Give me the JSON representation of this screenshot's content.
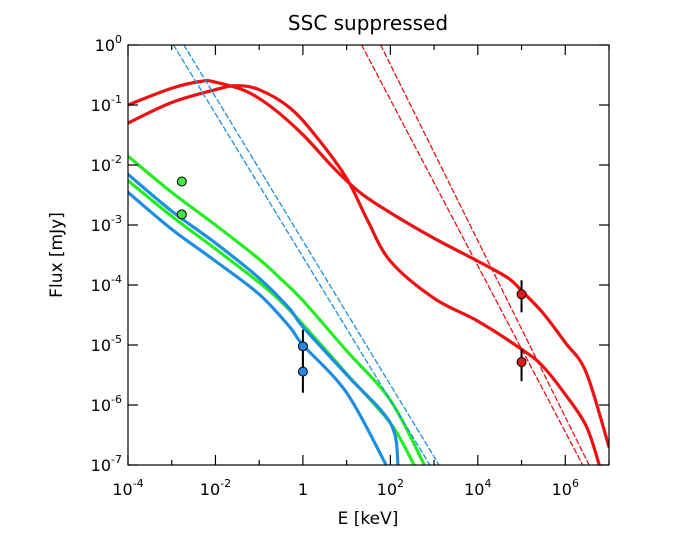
{
  "chart_data": {
    "type": "line",
    "title": "SSC suppressed",
    "xlabel": "E [keV]",
    "ylabel": "Flux [mJy]",
    "xscale": "log",
    "yscale": "log",
    "xlim": [
      0.0001,
      10000000
    ],
    "ylim": [
      1e-07,
      1
    ],
    "x_ticks": [
      {
        "value": 0.0001,
        "base": "10",
        "exp": "-4"
      },
      {
        "value": 0.01,
        "base": "10",
        "exp": "-2"
      },
      {
        "value": 1,
        "base": "1",
        "exp": ""
      },
      {
        "value": 100,
        "base": "10",
        "exp": "2"
      },
      {
        "value": 10000,
        "base": "10",
        "exp": "4"
      },
      {
        "value": 1000000,
        "base": "10",
        "exp": "6"
      }
    ],
    "y_ticks": [
      {
        "value": 1,
        "base": "10",
        "exp": "0"
      },
      {
        "value": 0.1,
        "base": "10",
        "exp": "-1"
      },
      {
        "value": 0.01,
        "base": "10",
        "exp": "-2"
      },
      {
        "value": 0.001,
        "base": "10",
        "exp": "-3"
      },
      {
        "value": 0.0001,
        "base": "10",
        "exp": "-4"
      },
      {
        "value": 1e-05,
        "base": "10",
        "exp": "-5"
      },
      {
        "value": 1e-06,
        "base": "10",
        "exp": "-6"
      },
      {
        "value": 1e-07,
        "base": "10",
        "exp": "-7"
      }
    ],
    "grid": false,
    "legend": "none",
    "colors": {
      "red": "#ee1111",
      "green": "#22ee22",
      "blue": "#1e8fe0",
      "dashed_red": "#ee1111",
      "dashed_blue": "#1e8fe0",
      "marker_red": "#e31a1c",
      "marker_green": "#3ee83e",
      "marker_blue": "#2a87e0",
      "errorbar": "#000000"
    },
    "series": [
      {
        "color": "red",
        "style": "solid",
        "points": [
          [
            0.0001,
            0.1
          ],
          [
            0.001,
            0.19
          ],
          [
            0.005,
            0.25
          ],
          [
            0.01,
            0.24
          ],
          [
            0.05,
            0.17
          ],
          [
            0.2,
            0.09
          ],
          [
            1,
            0.032
          ],
          [
            5,
            0.009
          ],
          [
            20,
            0.0035
          ],
          [
            100,
            0.0016
          ],
          [
            1000,
            0.0006
          ],
          [
            10000,
            0.00025
          ],
          [
            50000,
            0.00013
          ],
          [
            100000,
            8e-05
          ],
          [
            300000,
            3.5e-05
          ],
          [
            1000000,
            1.1e-05
          ],
          [
            3000000,
            3.5e-06
          ],
          [
            10000000,
            2e-07
          ]
        ]
      },
      {
        "color": "red",
        "style": "solid",
        "points": [
          [
            0.0001,
            0.05
          ],
          [
            0.001,
            0.11
          ],
          [
            0.01,
            0.18
          ],
          [
            0.03,
            0.21
          ],
          [
            0.1,
            0.18
          ],
          [
            0.5,
            0.09
          ],
          [
            2,
            0.03
          ],
          [
            10,
            0.006
          ],
          [
            30,
            0.0012
          ],
          [
            100,
            0.00025
          ],
          [
            1000,
            6e-05
          ],
          [
            10000,
            2.5e-05
          ],
          [
            100000,
            8.5e-06
          ],
          [
            300000,
            4.5e-06
          ],
          [
            1000000,
            1.5e-06
          ],
          [
            3000000,
            4.5e-07
          ],
          [
            6000000,
            1e-07
          ]
        ]
      },
      {
        "color": "green",
        "style": "solid",
        "points": [
          [
            0.0001,
            0.014
          ],
          [
            0.001,
            0.0035
          ],
          [
            0.01,
            0.001
          ],
          [
            0.1,
            0.00027
          ],
          [
            0.3,
            0.00013
          ],
          [
            1,
            5.5e-05
          ],
          [
            10,
            8e-06
          ],
          [
            100,
            1.2e-06
          ],
          [
            600,
            1e-07
          ]
        ]
      },
      {
        "color": "green",
        "style": "solid",
        "points": [
          [
            0.0001,
            0.0055
          ],
          [
            0.001,
            0.0014
          ],
          [
            0.01,
            0.0004
          ],
          [
            0.1,
            0.00011
          ],
          [
            0.3,
            5.5e-05
          ],
          [
            1,
            2.2e-05
          ],
          [
            10,
            3.3e-06
          ],
          [
            100,
            5e-07
          ],
          [
            350,
            1e-07
          ]
        ]
      },
      {
        "color": "blue",
        "style": "solid",
        "points": [
          [
            0.0001,
            0.007
          ],
          [
            0.001,
            0.0017
          ],
          [
            0.01,
            0.0005
          ],
          [
            0.1,
            0.00013
          ],
          [
            0.5,
            4e-05
          ],
          [
            1,
            2e-05
          ],
          [
            10,
            3.2e-06
          ],
          [
            100,
            5e-07
          ],
          [
            150,
            1e-07
          ]
        ]
      },
      {
        "color": "blue",
        "style": "solid",
        "points": [
          [
            0.0001,
            0.0035
          ],
          [
            0.001,
            0.00085
          ],
          [
            0.01,
            0.00025
          ],
          [
            0.1,
            7e-05
          ],
          [
            0.5,
            2e-05
          ],
          [
            1,
            1e-05
          ],
          [
            10,
            1.6e-06
          ],
          [
            80,
            1e-07
          ]
        ]
      },
      {
        "color": "dashed_blue",
        "style": "dashed",
        "points": [
          [
            0.0011,
            1
          ],
          [
            800,
            1e-07
          ]
        ]
      },
      {
        "color": "dashed_blue",
        "style": "dashed",
        "points": [
          [
            0.0019,
            1
          ],
          [
            1300,
            1e-07
          ]
        ]
      },
      {
        "color": "dashed_red",
        "style": "dashed",
        "points": [
          [
            22,
            1
          ],
          [
            2500000,
            1e-07
          ]
        ]
      },
      {
        "color": "dashed_red",
        "style": "dashed",
        "points": [
          [
            60,
            1
          ],
          [
            3500000,
            1e-07
          ]
        ]
      }
    ],
    "markers": [
      {
        "color": "marker_green",
        "x": 0.0017,
        "y": 0.0053,
        "err": null
      },
      {
        "color": "marker_green",
        "x": 0.0017,
        "y": 0.0015,
        "err": null
      },
      {
        "color": "marker_blue",
        "x": 1,
        "y": 9.5e-06,
        "err": [
          4.2e-06,
          1.8e-05
        ]
      },
      {
        "color": "marker_blue",
        "x": 1,
        "y": 3.6e-06,
        "err": [
          1.6e-06,
          6.8e-06
        ]
      },
      {
        "color": "marker_red",
        "x": 100000,
        "y": 7e-05,
        "err": [
          3.5e-05,
          0.00012
        ]
      },
      {
        "color": "marker_red",
        "x": 100000,
        "y": 5.2e-06,
        "err": [
          2.5e-06,
          8.5e-06
        ]
      }
    ]
  }
}
